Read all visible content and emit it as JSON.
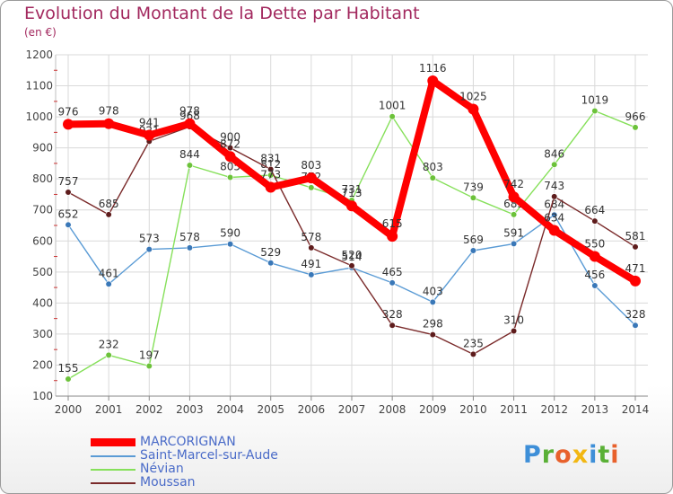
{
  "title": "Evolution du Montant de la Dette par Habitant",
  "unit": "(en €)",
  "logo": {
    "text": "Proxiti",
    "letter_colors": [
      "#3e8fd8",
      "#5ab036",
      "#e8612c",
      "#f2b712",
      "#3e8fd8",
      "#5ab036",
      "#e8612c"
    ]
  },
  "chart_data": {
    "type": "line",
    "title": "Evolution du Montant de la Dette par Habitant",
    "ylabel": "(en €)",
    "xlabel": "",
    "categories": [
      "2000",
      "2001",
      "2002",
      "2003",
      "2004",
      "2005",
      "2006",
      "2007",
      "2008",
      "2009",
      "2010",
      "2011",
      "2012",
      "2013",
      "2014"
    ],
    "ylim": [
      100,
      1200
    ],
    "yticks": [
      100,
      200,
      300,
      400,
      500,
      600,
      700,
      800,
      900,
      1000,
      1100,
      1200
    ],
    "grid": true,
    "legend_position": "bottom-left",
    "series": [
      {
        "name": "Saint-Marcel-sur-Aude",
        "color": "#5a9bd5",
        "marker": "#3a78b8",
        "values": [
          652,
          461,
          573,
          578,
          590,
          529,
          491,
          514,
          465,
          403,
          569,
          591,
          684,
          456,
          328
        ],
        "labels": [
          "652",
          "461",
          "573",
          "578",
          "590",
          "529",
          "491",
          "514",
          "465",
          "403",
          "569",
          "591",
          "684",
          "456",
          "328"
        ]
      },
      {
        "name": "Névian",
        "color": "#86e05a",
        "marker": "#6cc23a",
        "values": [
          155,
          232,
          197,
          844,
          805,
          812,
          772,
          731,
          1001,
          803,
          739,
          685,
          846,
          1019,
          966
        ],
        "labels": [
          "155",
          "232",
          "197",
          "844",
          "805",
          "812",
          "772",
          "731",
          "1001",
          "803",
          "739",
          "685",
          "846",
          "1019",
          "966"
        ]
      },
      {
        "name": "Moussan",
        "color": "#7a2a2a",
        "marker": "#5e1c1c",
        "values": [
          757,
          685,
          921,
          968,
          900,
          831,
          578,
          520,
          328,
          298,
          235,
          310,
          743,
          664,
          581
        ],
        "labels": [
          "757",
          "685",
          "921",
          "968",
          "900",
          "831",
          "578",
          "520",
          "328",
          "298",
          "235",
          "310",
          "743",
          "664",
          "581"
        ]
      },
      {
        "name": "MARCORIGNAN",
        "color": "#ff0000",
        "marker": "#ff0000",
        "values": [
          976,
          978,
          941,
          978,
          872,
          773,
          803,
          713,
          615,
          1116,
          1025,
          742,
          634,
          550,
          471
        ],
        "labels": [
          "976",
          "978",
          "941",
          "978",
          "872",
          "773",
          "803",
          "713",
          "615",
          "1116",
          "1025",
          "742",
          "634",
          "550",
          "471"
        ]
      }
    ]
  },
  "legend": [
    {
      "label": "MARCORIGNAN",
      "color": "#ff0000"
    },
    {
      "label": "Saint-Marcel-sur-Aude",
      "color": "#5a9bd5"
    },
    {
      "label": "Névian",
      "color": "#86e05a"
    },
    {
      "label": "Moussan",
      "color": "#7a2a2a"
    }
  ]
}
